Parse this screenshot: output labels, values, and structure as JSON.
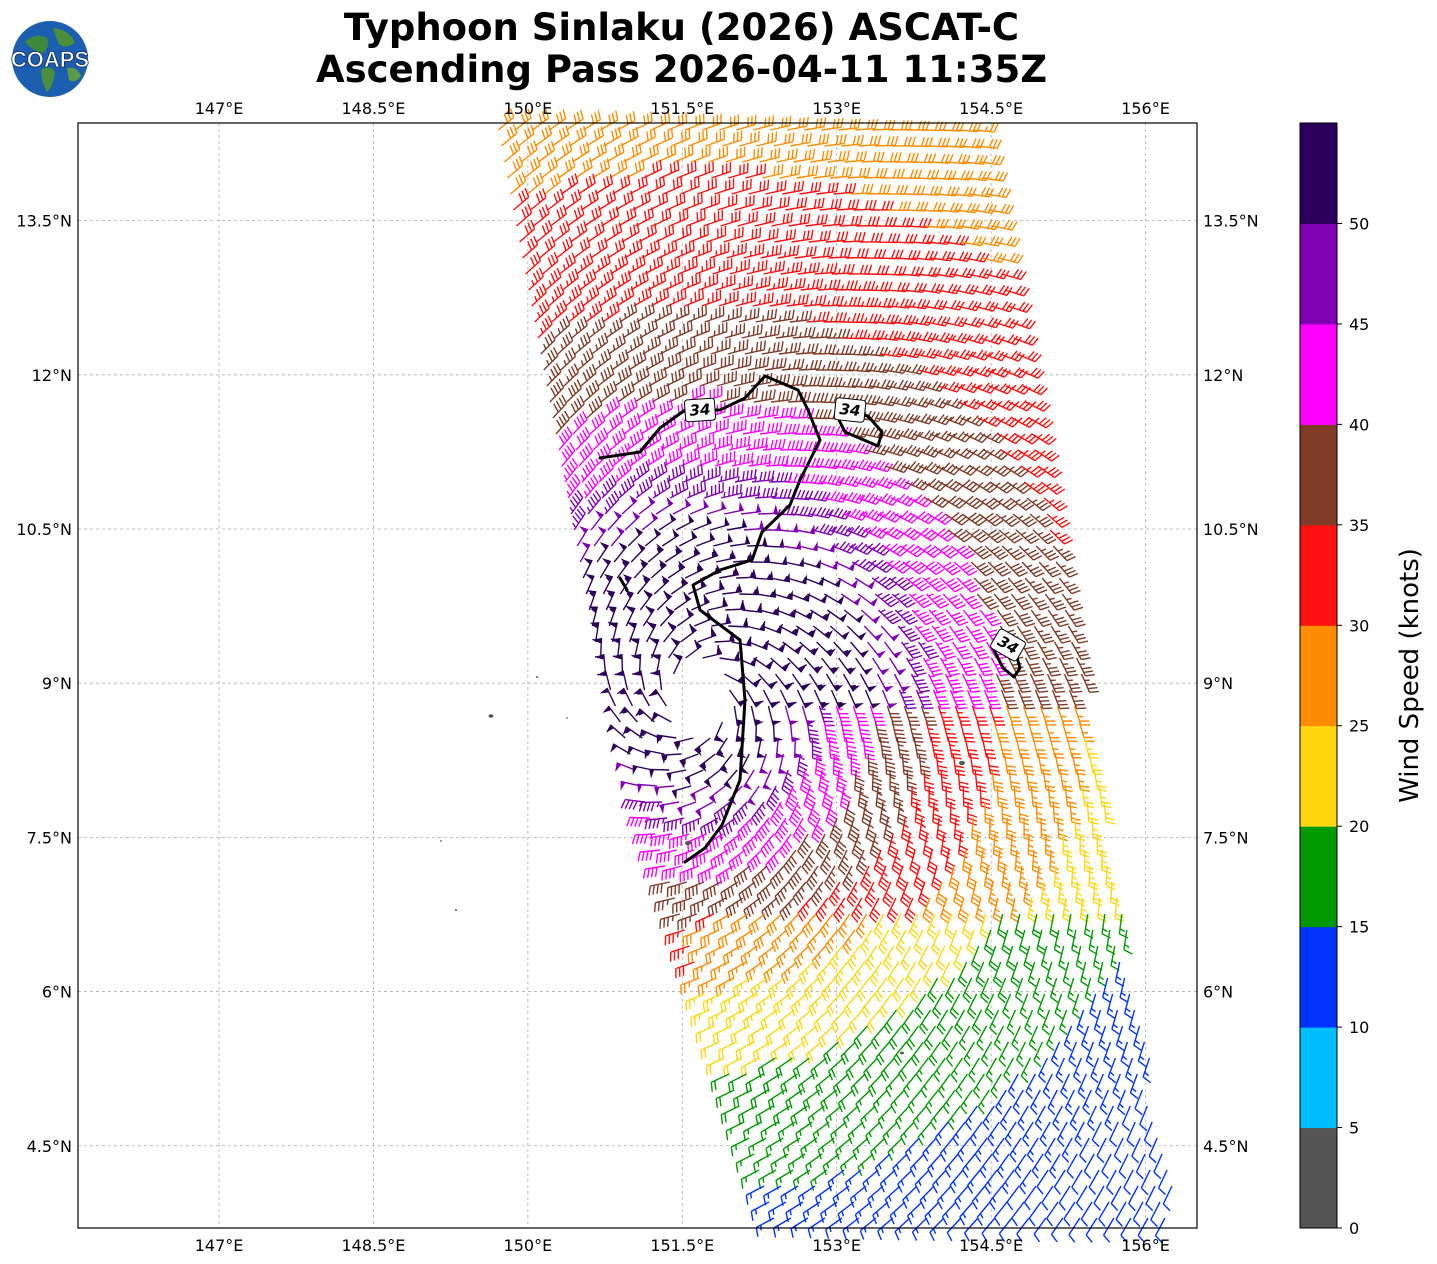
{
  "title": {
    "line1": "Typhoon Sinlaku (2026) ASCAT-C",
    "line2": "Ascending Pass 2026-04-11 11:35Z"
  },
  "logo": {
    "text": "COAPS",
    "icon": "globe-icon"
  },
  "map": {
    "lon_labels": [
      "147°E",
      "148.5°E",
      "150°E",
      "151.5°E",
      "153°E",
      "154.5°E",
      "156°E"
    ],
    "lon_values": [
      147,
      148.5,
      150,
      151.5,
      153,
      154.5,
      156
    ],
    "lat_labels": [
      "13.5°N",
      "12°N",
      "10.5°N",
      "9°N",
      "7.5°N",
      "6°N",
      "4.5°N"
    ],
    "lat_values": [
      13.5,
      12,
      10.5,
      9,
      7.5,
      6,
      4.5
    ],
    "extent": {
      "lon": [
        145.63,
        156.5
      ],
      "lat": [
        3.7,
        14.45
      ]
    },
    "gridlines": true,
    "contour_label": "34",
    "contour_knots": 34,
    "storm_center": {
      "lon": 151.65,
      "lat": 8.85
    }
  },
  "colorbar": {
    "title": "Wind Speed (knots)",
    "tick_labels": [
      "0",
      "5",
      "10",
      "15",
      "20",
      "25",
      "30",
      "35",
      "40",
      "45",
      "50"
    ],
    "bins": [
      0,
      5,
      10,
      15,
      20,
      25,
      30,
      35,
      40,
      45,
      50,
      55
    ],
    "colors": [
      "#555555",
      "#00bfff",
      "#0033ff",
      "#009900",
      "#ffd70f",
      "#ff8c00",
      "#ff1010",
      "#7f3b28",
      "#ff00ff",
      "#8000b4",
      "#2c005a"
    ]
  }
}
